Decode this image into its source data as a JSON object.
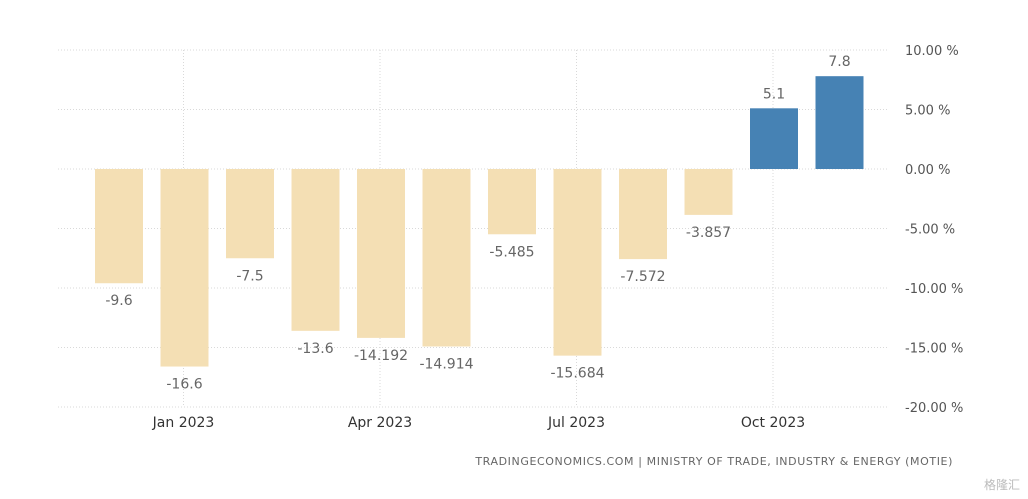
{
  "chart_data": {
    "type": "bar",
    "categories": [
      "Dec 2022",
      "Jan 2023",
      "Feb 2023",
      "Mar 2023",
      "Apr 2023",
      "May 2023",
      "Jun 2023",
      "Jul 2023",
      "Aug 2023",
      "Sep 2023",
      "Oct 2023",
      "Nov 2023"
    ],
    "values": [
      -9.6,
      -16.6,
      -7.5,
      -13.6,
      -14.192,
      -14.914,
      -5.485,
      -15.684,
      -7.572,
      -3.857,
      5.1,
      7.8
    ],
    "value_labels": [
      "-9.6",
      "-16.6",
      "-7.5",
      "-13.6",
      "-14.192",
      "-14.914",
      "-5.485",
      "-15.684",
      "-7.572",
      "-3.857",
      "5.1",
      "7.8"
    ],
    "x_tick_labels": [
      {
        "category": "Jan 2023",
        "label": "Jan 2023"
      },
      {
        "category": "Apr 2023",
        "label": "Apr 2023"
      },
      {
        "category": "Jul 2023",
        "label": "Jul 2023"
      },
      {
        "category": "Oct 2023",
        "label": "Oct 2023"
      }
    ],
    "y_ticks": [
      10,
      5,
      0,
      -5,
      -10,
      -15,
      -20
    ],
    "y_tick_labels": [
      "10.00 %",
      "5.00 %",
      "0.00 %",
      "-5.00 %",
      "-10.00 %",
      "-15.00 %",
      "-20.00 %"
    ],
    "ylim": [
      -20,
      10
    ],
    "grid": true,
    "y_axis_position": "right",
    "colors": {
      "negative": "#f4dfb4",
      "positive": "#4682b4",
      "grid": "#d9d9d9",
      "label": "#666666"
    }
  },
  "source_text": "TRADINGECONOMICS.COM | MINISTRY OF TRADE, INDUSTRY & ENERGY (MOTIE)",
  "watermark_text": "格隆汇"
}
